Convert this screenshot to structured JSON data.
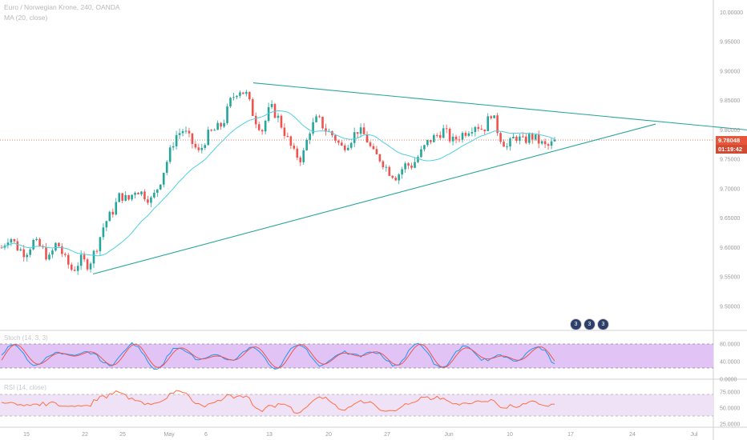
{
  "header": {
    "symbol": "Euro / Norwegian Krone, 240, OANDA",
    "ma": "MA (20, close)"
  },
  "indicators": {
    "stoch_label": "Stoch (14, 3, 3)",
    "rsi_label": "RSI (14, close)"
  },
  "price_axis": {
    "ticks": [
      "10.00000",
      "9.95000",
      "9.90000",
      "9.85000",
      "9.80000",
      "9.75000",
      "9.70000",
      "9.65000",
      "9.60000",
      "9.55000",
      "9.50000"
    ],
    "current_price": "9.78048",
    "countdown": "01:19:42"
  },
  "stoch_axis": {
    "ticks": [
      "80.0000",
      "40.0000",
      "0.0000"
    ]
  },
  "rsi_axis": {
    "ticks": [
      "75.0000",
      "50.0000",
      "25.0000"
    ]
  },
  "time_axis": {
    "ticks": [
      "15",
      "22",
      "25",
      "May",
      "6",
      "13",
      "20",
      "27",
      "Jun",
      "10",
      "17",
      "24",
      "Jul"
    ]
  },
  "event_badges": [
    "3",
    "3",
    "3"
  ],
  "colors": {
    "up": "#26a69a",
    "down": "#ef5350",
    "ma": "#4dd0e1",
    "trendline": "#26a69a",
    "stoch_bg": "#e1c4f5",
    "rsi_bg": "#efe2f7",
    "rsi_line": "#ff7043",
    "stoch_k": "#2196f3",
    "stoch_d": "#ef5350",
    "price_tag": "#e8553a"
  },
  "chart_data": {
    "type": "candlestick",
    "ylim": [
      9.47,
      10.01
    ],
    "close_path": [
      9.6,
      9.62,
      9.6,
      9.59,
      9.61,
      9.6,
      9.58,
      9.61,
      9.58,
      9.56,
      9.58,
      9.57,
      9.6,
      9.64,
      9.66,
      9.69,
      9.68,
      9.7,
      9.69,
      9.68,
      9.71,
      9.75,
      9.79,
      9.8,
      9.78,
      9.76,
      9.79,
      9.8,
      9.81,
      9.85,
      9.87,
      9.86,
      9.82,
      9.8,
      9.84,
      9.82,
      9.79,
      9.76,
      9.75,
      9.8,
      9.82,
      9.8,
      9.79,
      9.77,
      9.78,
      9.8,
      9.79,
      9.76,
      9.75,
      9.73,
      9.72,
      9.74,
      9.74,
      9.76,
      9.78,
      9.79,
      9.8,
      9.78,
      9.79,
      9.8,
      9.81,
      9.8,
      9.83,
      9.79,
      9.77,
      9.79,
      9.78,
      9.79,
      9.78,
      9.77,
      9.78
    ],
    "trendlines": [
      {
        "from": [
          21,
          9.575
        ],
        "to": [
          79,
          9.81
        ]
      },
      {
        "from": [
          32,
          9.9
        ],
        "to": [
          90,
          9.8
        ]
      }
    ]
  }
}
